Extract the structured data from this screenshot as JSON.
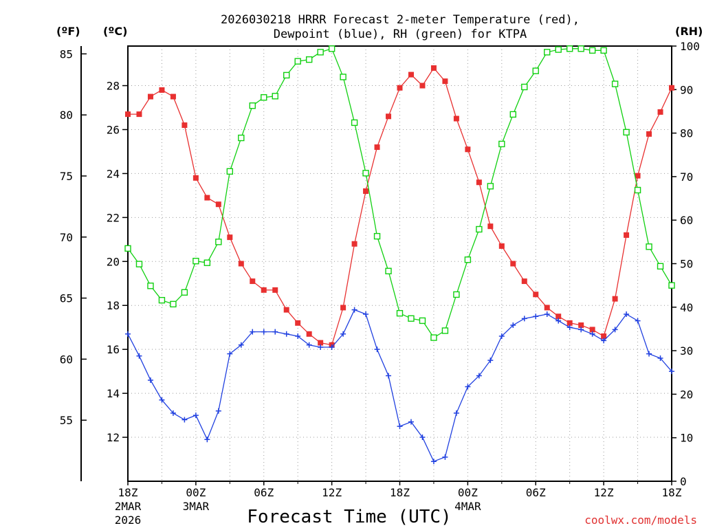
{
  "chart_data": {
    "type": "line",
    "title_line1": "2026030218 HRRR Forecast 2-meter Temperature (red),",
    "title_line2": "Dewpoint (blue), RH (green) for KTPA",
    "xlabel": "Forecast Time (UTC)",
    "credit": "coolwx.com/models",
    "units": {
      "fahrenheit": "(ºF)",
      "celsius": "(ºC)",
      "rh": "(RH)"
    },
    "colors": {
      "temperature": "#e83030",
      "dewpoint": "#2040e0",
      "rh": "#10d010"
    },
    "x_range_hours": [
      0,
      48
    ],
    "x_ticks": [
      {
        "hour": 0,
        "lines": [
          "18Z",
          "2MAR",
          "2026"
        ]
      },
      {
        "hour": 6,
        "lines": [
          "00Z",
          "3MAR"
        ]
      },
      {
        "hour": 12,
        "lines": [
          "06Z"
        ]
      },
      {
        "hour": 18,
        "lines": [
          "12Z"
        ]
      },
      {
        "hour": 24,
        "lines": [
          "18Z"
        ]
      },
      {
        "hour": 30,
        "lines": [
          "00Z",
          "4MAR"
        ]
      },
      {
        "hour": 36,
        "lines": [
          "06Z"
        ]
      },
      {
        "hour": 42,
        "lines": [
          "12Z"
        ]
      },
      {
        "hour": 48,
        "lines": [
          "18Z"
        ]
      }
    ],
    "celsius_axis": {
      "range": [
        10,
        29.8
      ],
      "ticks": [
        "12",
        "14",
        "16",
        "18",
        "20",
        "22",
        "24",
        "26",
        "28"
      ]
    },
    "fahrenheit_axis": {
      "range": [
        50,
        85.64
      ],
      "ticks": [
        "55",
        "60",
        "65",
        "70",
        "75",
        "80",
        "85"
      ]
    },
    "rh_axis": {
      "range": [
        0,
        100
      ],
      "ticks": [
        "0",
        "10",
        "20",
        "30",
        "40",
        "50",
        "60",
        "70",
        "80",
        "90",
        "100"
      ]
    },
    "series": [
      {
        "name": "Temperature",
        "unit": "C",
        "marker": "filled-square",
        "values": [
          26.7,
          26.7,
          27.5,
          27.8,
          27.5,
          26.2,
          23.8,
          22.9,
          22.6,
          21.1,
          19.9,
          19.1,
          18.7,
          18.7,
          17.8,
          17.2,
          16.7,
          16.3,
          16.2,
          17.9,
          20.8,
          23.2,
          25.2,
          26.6,
          27.9,
          28.5,
          28.0,
          28.8,
          28.2,
          26.5,
          25.1,
          23.6,
          21.6,
          20.7,
          19.9,
          19.1,
          18.5,
          17.9,
          17.5,
          17.2,
          17.1,
          16.9,
          16.6,
          18.3,
          21.2,
          23.9,
          25.8,
          26.8,
          27.9
        ]
      },
      {
        "name": "Dewpoint",
        "unit": "C",
        "marker": "plus",
        "values": [
          16.7,
          15.7,
          14.6,
          13.7,
          13.1,
          12.8,
          13.0,
          11.9,
          13.2,
          15.8,
          16.2,
          16.8,
          16.8,
          16.8,
          16.7,
          16.6,
          16.2,
          16.1,
          16.1,
          16.7,
          17.8,
          17.6,
          16.0,
          14.8,
          12.5,
          12.7,
          12.0,
          10.9,
          11.1,
          13.1,
          14.3,
          14.8,
          15.5,
          16.6,
          17.1,
          17.4,
          17.5,
          17.6,
          17.3,
          17.0,
          16.9,
          16.7,
          16.4,
          16.9,
          17.6,
          17.3,
          15.8,
          15.6,
          15.0
        ]
      },
      {
        "name": "RH",
        "unit": "%",
        "marker": "open-square",
        "values": [
          53.5,
          49.9,
          44.9,
          41.6,
          40.7,
          43.4,
          50.6,
          50.2,
          55.0,
          71.2,
          78.9,
          86.3,
          88.2,
          88.5,
          93.3,
          96.5,
          96.9,
          98.6,
          99.4,
          92.9,
          82.4,
          70.8,
          56.3,
          48.3,
          38.6,
          37.4,
          36.9,
          33.0,
          34.6,
          42.9,
          50.9,
          57.9,
          67.8,
          77.5,
          84.3,
          90.6,
          94.3,
          98.6,
          99.2,
          99.4,
          99.4,
          99.0,
          99.0,
          91.3,
          80.2,
          66.9,
          53.9,
          49.4,
          45.0
        ]
      }
    ]
  }
}
